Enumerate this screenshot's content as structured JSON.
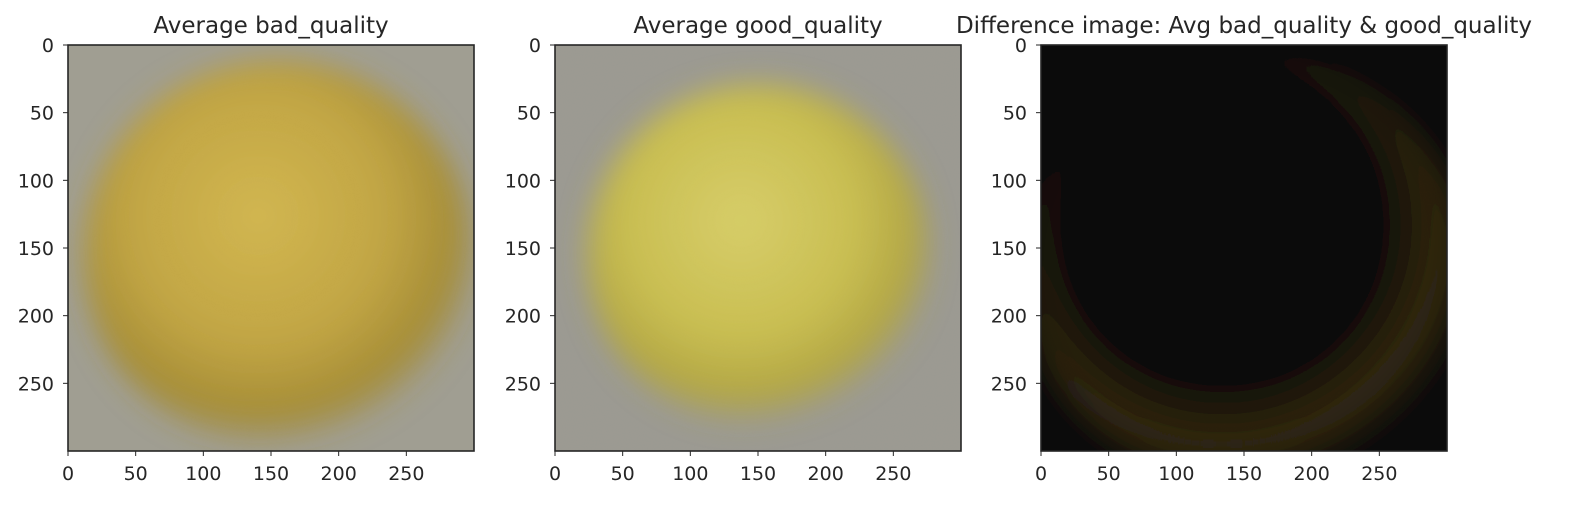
{
  "chart_data": [
    {
      "type": "image",
      "title": "Average bad_quality",
      "image_size": [
        300,
        300
      ],
      "xticks": [
        0,
        50,
        100,
        150,
        200,
        250
      ],
      "yticks": [
        0,
        50,
        100,
        150,
        200,
        250
      ],
      "xlim": [
        0,
        300
      ],
      "ylim": [
        0,
        300
      ],
      "y_inverted": true,
      "grid": false,
      "background_color": "#a3a193",
      "blob": {
        "center": [
          155,
          155
        ],
        "radius": 125,
        "color": "#c9a93a",
        "highlight_color": "#dcbd48",
        "shadow_color": "#a98d2a"
      }
    },
    {
      "type": "image",
      "title": "Average good_quality",
      "image_size": [
        300,
        300
      ],
      "xticks": [
        0,
        50,
        100,
        150,
        200,
        250
      ],
      "yticks": [
        0,
        50,
        100,
        150,
        200,
        250
      ],
      "xlim": [
        0,
        300
      ],
      "ylim": [
        0,
        300
      ],
      "y_inverted": true,
      "grid": false,
      "background_color": "#9e9c93",
      "blob": {
        "center": [
          150,
          155
        ],
        "radius": 110,
        "color": "#d2c64a",
        "highlight_color": "#e2d765",
        "shadow_color": "#b8aa3a"
      }
    },
    {
      "type": "image",
      "title": "Difference image: Avg bad_quality & good_quality",
      "image_size": [
        300,
        300
      ],
      "xticks": [
        0,
        50,
        100,
        150,
        200,
        250
      ],
      "yticks": [
        0,
        50,
        100,
        150,
        200,
        250
      ],
      "xlim": [
        0,
        300
      ],
      "ylim": [
        0,
        300
      ],
      "y_inverted": true,
      "grid": false,
      "background_color": "#000000",
      "blob": {
        "center": [
          150,
          165
        ],
        "radius": 140,
        "color": "#000000",
        "highlight_color": "#050300",
        "shadow_color": "#2e2108"
      }
    }
  ]
}
